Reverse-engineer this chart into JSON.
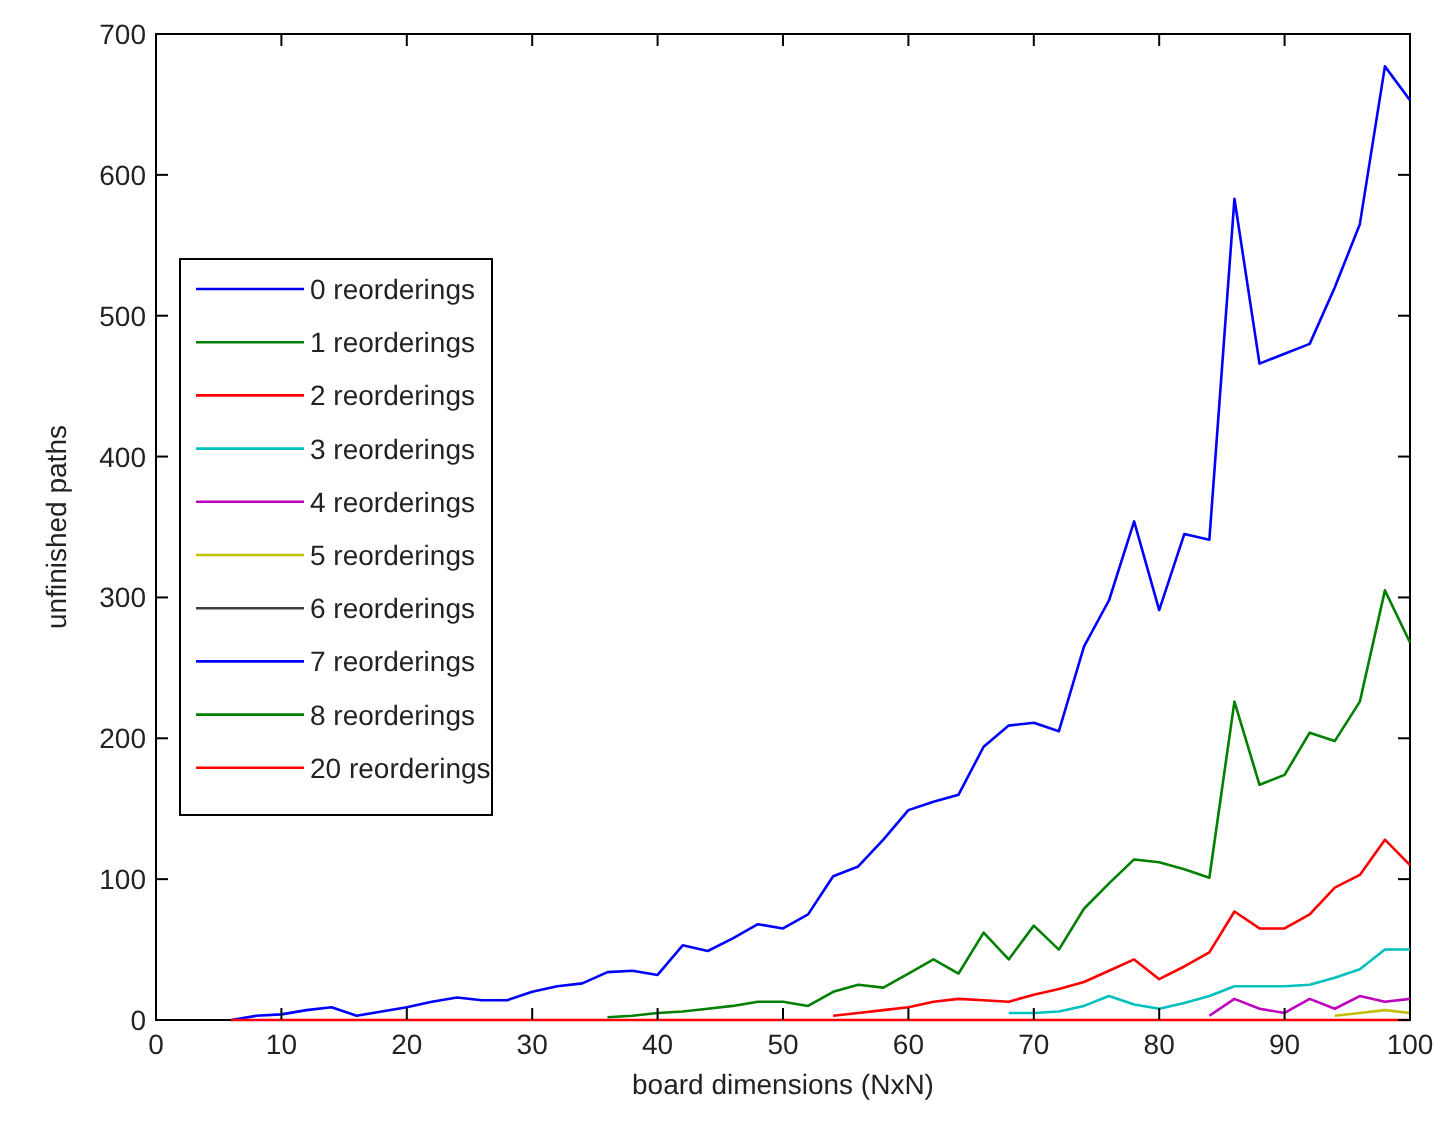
{
  "chart_data": {
    "type": "line",
    "xlabel": "board dimensions (NxN)",
    "ylabel": "unfinished paths",
    "x": [
      6,
      8,
      10,
      12,
      14,
      16,
      18,
      20,
      22,
      24,
      26,
      28,
      30,
      32,
      34,
      36,
      38,
      40,
      42,
      44,
      46,
      48,
      50,
      52,
      54,
      56,
      58,
      60,
      62,
      64,
      66,
      68,
      70,
      72,
      74,
      76,
      78,
      80,
      82,
      84,
      86,
      88,
      90,
      92,
      94,
      96,
      98,
      100
    ],
    "xlim": [
      0,
      100
    ],
    "xticks": [
      0,
      10,
      20,
      30,
      40,
      50,
      60,
      70,
      80,
      90,
      100
    ],
    "ylim": [
      0,
      700
    ],
    "yticks": [
      0,
      100,
      200,
      300,
      400,
      500,
      600,
      700
    ],
    "grid": false,
    "legend": "left",
    "marker": "none",
    "line_style": "solid",
    "series": [
      {
        "name": "0 reorderings",
        "color": "#0000ff",
        "values": [
          0,
          3,
          4,
          7,
          9,
          3,
          6,
          9,
          13,
          16,
          14,
          14,
          20,
          24,
          26,
          34,
          35,
          32,
          53,
          49,
          58,
          68,
          65,
          75,
          102,
          109,
          128,
          149,
          155,
          160,
          194,
          209,
          211,
          205,
          265,
          298,
          354,
          291,
          345,
          341,
          583,
          466,
          473,
          480,
          520,
          565,
          677,
          653
        ]
      },
      {
        "name": "1 reorderings",
        "color": "#008000",
        "values": [
          null,
          null,
          null,
          null,
          null,
          null,
          null,
          null,
          null,
          null,
          null,
          null,
          null,
          null,
          null,
          2,
          3,
          5,
          6,
          8,
          10,
          13,
          13,
          10,
          20,
          25,
          23,
          33,
          43,
          33,
          62,
          43,
          67,
          50,
          79,
          97,
          114,
          112,
          107,
          101,
          226,
          167,
          174,
          204,
          198,
          226,
          305,
          268
        ]
      },
      {
        "name": "2 reorderings",
        "color": "#ff0000",
        "values": [
          null,
          null,
          null,
          null,
          null,
          null,
          null,
          null,
          null,
          null,
          null,
          null,
          null,
          null,
          null,
          null,
          null,
          null,
          null,
          null,
          null,
          null,
          null,
          null,
          3,
          5,
          7,
          9,
          13,
          15,
          14,
          13,
          18,
          22,
          27,
          35,
          43,
          29,
          38,
          48,
          77,
          65,
          65,
          75,
          94,
          103,
          128,
          110
        ]
      },
      {
        "name": "3 reorderings",
        "color": "#00bfbf",
        "values": [
          null,
          null,
          null,
          null,
          null,
          null,
          null,
          null,
          null,
          null,
          null,
          null,
          null,
          null,
          null,
          null,
          null,
          null,
          null,
          null,
          null,
          null,
          null,
          null,
          null,
          null,
          null,
          null,
          null,
          null,
          null,
          5,
          5,
          6,
          10,
          17,
          11,
          8,
          12,
          17,
          24,
          24,
          24,
          25,
          30,
          36,
          50,
          50
        ]
      },
      {
        "name": "4 reorderings",
        "color": "#bf00bf",
        "values": [
          null,
          null,
          null,
          null,
          null,
          null,
          null,
          null,
          null,
          null,
          null,
          null,
          null,
          null,
          null,
          null,
          null,
          null,
          null,
          null,
          null,
          null,
          null,
          null,
          null,
          null,
          null,
          null,
          null,
          null,
          null,
          null,
          null,
          null,
          null,
          null,
          null,
          null,
          null,
          3,
          15,
          8,
          5,
          15,
          8,
          17,
          13,
          15
        ]
      },
      {
        "name": "5 reorderings",
        "color": "#bfbf00",
        "values": [
          null,
          null,
          null,
          null,
          null,
          null,
          null,
          null,
          null,
          null,
          null,
          null,
          null,
          null,
          null,
          null,
          null,
          null,
          null,
          null,
          null,
          null,
          null,
          null,
          null,
          null,
          null,
          null,
          null,
          null,
          null,
          null,
          null,
          null,
          null,
          null,
          null,
          null,
          null,
          null,
          null,
          null,
          null,
          null,
          3,
          5,
          7,
          5
        ]
      },
      {
        "name": "6 reorderings",
        "color": "#404040",
        "values": [
          null,
          null,
          null,
          null,
          null,
          null,
          null,
          null,
          null,
          null,
          null,
          null,
          null,
          null,
          null,
          null,
          null,
          null,
          null,
          null,
          null,
          null,
          null,
          null,
          null,
          null,
          null,
          null,
          null,
          null,
          null,
          null,
          null,
          null,
          null,
          null,
          null,
          null,
          null,
          null,
          null,
          null,
          null,
          null,
          null,
          null,
          null,
          null
        ]
      },
      {
        "name": "7 reorderings",
        "color": "#0000ff",
        "values": [
          null,
          null,
          null,
          null,
          null,
          null,
          null,
          null,
          null,
          null,
          null,
          null,
          null,
          null,
          null,
          null,
          null,
          null,
          null,
          null,
          null,
          null,
          null,
          null,
          null,
          null,
          null,
          null,
          null,
          null,
          null,
          null,
          null,
          null,
          null,
          null,
          null,
          null,
          null,
          null,
          null,
          null,
          null,
          null,
          null,
          null,
          null,
          null
        ]
      },
      {
        "name": "8 reorderings",
        "color": "#008000",
        "values": [
          null,
          null,
          null,
          null,
          null,
          null,
          null,
          null,
          null,
          null,
          null,
          null,
          null,
          null,
          null,
          null,
          null,
          null,
          null,
          null,
          null,
          null,
          null,
          null,
          null,
          null,
          null,
          null,
          null,
          null,
          null,
          null,
          null,
          null,
          null,
          null,
          null,
          null,
          null,
          null,
          null,
          null,
          null,
          null,
          null,
          null,
          null,
          null
        ]
      },
      {
        "name": "20 reorderings",
        "color": "#ff0000",
        "values": [
          0,
          0,
          0,
          0,
          0,
          0,
          0,
          0,
          0,
          0,
          0,
          0,
          0,
          0,
          0,
          0,
          0,
          0,
          0,
          0,
          0,
          0,
          0,
          0,
          0,
          0,
          0,
          0,
          0,
          0,
          0,
          0,
          0,
          0,
          0,
          0,
          0,
          0,
          0,
          0,
          0,
          0,
          0,
          0,
          0,
          0,
          0,
          0
        ]
      }
    ]
  }
}
